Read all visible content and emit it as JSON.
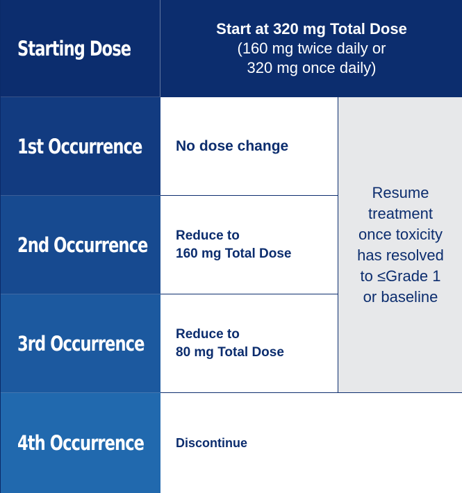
{
  "rows": [
    {
      "label": "Starting Dose"
    },
    {
      "label": "1st Occurrence"
    },
    {
      "label": "2nd Occurrence"
    },
    {
      "label": "3rd Occurrence"
    },
    {
      "label": "4th Occurrence"
    }
  ],
  "header": {
    "title": "Start at 320 mg Total Dose",
    "sub_line1": "(160 mg twice daily or",
    "sub_line2": "320 mg once daily)"
  },
  "actions": {
    "first": "No dose change",
    "second_line1": "Reduce to",
    "second_line2": "160 mg Total Dose",
    "third_line1": "Reduce to",
    "third_line2": "80 mg Total Dose",
    "fourth": "Discontinue"
  },
  "resume": {
    "text": "Resume treatment once toxicity has resolved to ≤Grade 1 or baseline"
  },
  "colors": {
    "navy": "#0c2d6e",
    "blue_gradient_end": "#2169ae",
    "gray_cell": "#e7e8ea"
  }
}
